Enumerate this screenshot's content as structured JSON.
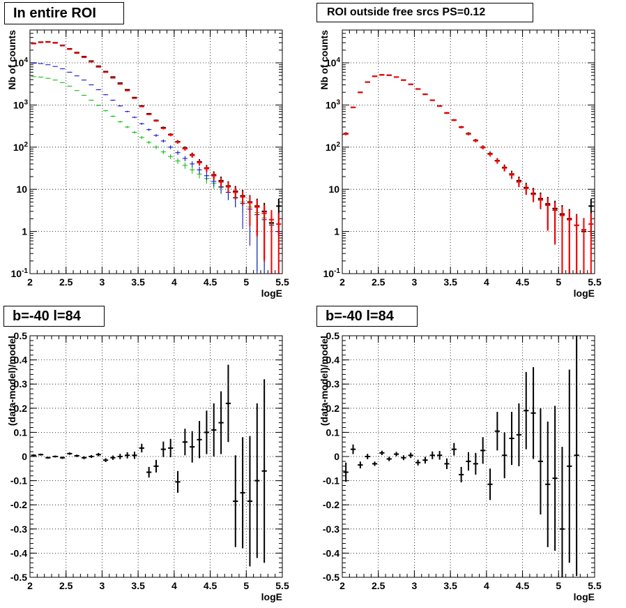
{
  "chart_data": [
    {
      "type": "scatter",
      "title": "In entire ROI",
      "xlabel": "logE",
      "ylabel": "Nb of counts",
      "xlim": [
        2,
        5.5
      ],
      "ylim": [
        0.1,
        60000
      ],
      "yscale": "log",
      "grid": true,
      "x_ticks": [
        "2",
        "2.5",
        "3",
        "3.5",
        "4",
        "4.5",
        "5",
        "5.5"
      ],
      "y_ticks": [
        "10^-1",
        "1",
        "10",
        "10^2",
        "10^3",
        "10^4"
      ],
      "x": [
        2.05,
        2.15,
        2.25,
        2.35,
        2.45,
        2.55,
        2.65,
        2.75,
        2.85,
        2.95,
        3.05,
        3.15,
        3.25,
        3.35,
        3.45,
        3.55,
        3.65,
        3.75,
        3.85,
        3.95,
        4.05,
        4.15,
        4.25,
        4.35,
        4.45,
        4.55,
        4.65,
        4.75,
        4.85,
        4.95,
        5.05,
        5.15,
        5.25,
        5.35,
        5.45
      ],
      "series": [
        {
          "color": "#000000",
          "values": [
            29000,
            31000,
            31500,
            30000,
            26000,
            21500,
            17500,
            14000,
            11000,
            8300,
            6200,
            4600,
            3300,
            2300,
            1500,
            950,
            620,
            430,
            290,
            200,
            135,
            95,
            66,
            45,
            32,
            22,
            16,
            12,
            9,
            7,
            5,
            4,
            3,
            1.6,
            4
          ],
          "err_frac": [
            0.005,
            0.005,
            0.005,
            0.005,
            0.005,
            0.006,
            0.008,
            0.008,
            0.01,
            0.011,
            0.013,
            0.015,
            0.017,
            0.02,
            0.026,
            0.032,
            0.04,
            0.048,
            0.06,
            0.07,
            0.086,
            0.1,
            0.12,
            0.15,
            0.18,
            0.21,
            0.25,
            0.29,
            0.33,
            0.38,
            0.45,
            0.5,
            0.58,
            0.9,
            0.5
          ]
        },
        {
          "color": "#ff0000",
          "values": [
            28500,
            30500,
            31000,
            29500,
            25500,
            21000,
            17000,
            13500,
            10600,
            8000,
            6000,
            4400,
            3150,
            2200,
            1450,
            920,
            600,
            420,
            280,
            195,
            132,
            92,
            64,
            43,
            31,
            21,
            15,
            11.5,
            8.5,
            6.6,
            4.8,
            3.8,
            2.7,
            1.9,
            1.5
          ],
          "err_frac": [
            0.005,
            0.005,
            0.005,
            0.005,
            0.005,
            0.006,
            0.008,
            0.008,
            0.01,
            0.011,
            0.013,
            0.015,
            0.017,
            0.02,
            0.026,
            0.032,
            0.04,
            0.048,
            0.06,
            0.07,
            0.086,
            0.1,
            0.12,
            0.15,
            0.18,
            0.21,
            0.25,
            0.29,
            0.33,
            0.38,
            0.45,
            0.5,
            0.58,
            0.7,
            0.8
          ]
        },
        {
          "color": "#0000cc",
          "values": [
            9800,
            9600,
            9000,
            8200,
            7200,
            6000,
            4900,
            3900,
            3000,
            2300,
            1750,
            1300,
            950,
            700,
            510,
            360,
            260,
            190,
            140,
            100,
            74,
            54,
            40,
            29,
            21,
            15.5,
            11.5,
            8.5,
            6.2,
            4.6,
            3.4,
            2.5,
            1.9,
            1.4,
            1.0
          ],
          "err_frac": [
            0.01,
            0.01,
            0.01,
            0.011,
            0.012,
            0.013,
            0.014,
            0.016,
            0.018,
            0.021,
            0.024,
            0.028,
            0.032,
            0.038,
            0.044,
            0.053,
            0.062,
            0.073,
            0.085,
            0.1,
            0.12,
            0.14,
            0.16,
            0.19,
            0.22,
            0.26,
            0.3,
            0.34,
            0.4,
            0.47,
            0.54,
            0.63,
            0.72,
            0.84,
            1
          ]
        },
        {
          "color": "#00bb00",
          "values": [
            4700,
            4600,
            4300,
            3900,
            3400,
            2800,
            2200,
            1700,
            1300,
            980,
            730,
            540,
            400,
            300,
            225,
            170,
            130,
            100,
            77,
            60,
            47,
            37,
            29,
            23,
            18,
            14,
            11,
            8.5,
            6.5,
            5,
            3.8,
            2.8,
            2.1,
            1.5,
            1.0
          ],
          "err_frac": [
            0.015,
            0.015,
            0.015,
            0.016,
            0.017,
            0.019,
            0.021,
            0.024,
            0.028,
            0.032,
            0.037,
            0.043,
            0.05,
            0.058,
            0.067,
            0.077,
            0.088,
            0.1,
            0.115,
            0.13,
            0.15,
            0.17,
            0.19,
            0.21,
            0.24,
            0.27,
            0.3,
            0.35,
            0.4,
            0.45,
            0.52,
            0.6,
            0.7,
            0.82,
            1
          ]
        }
      ]
    },
    {
      "type": "scatter",
      "title": "ROI outside free srcs PS=0.12",
      "xlabel": "logE",
      "ylabel": "Nb of counts",
      "xlim": [
        2,
        5.5
      ],
      "ylim": [
        0.1,
        60000
      ],
      "yscale": "log",
      "grid": true,
      "x_ticks": [
        "2",
        "2.5",
        "3",
        "3.5",
        "4",
        "4.5",
        "5",
        "5.5"
      ],
      "y_ticks": [
        "10^-1",
        "1",
        "10",
        "10^2",
        "10^3",
        "10^4"
      ],
      "x": [
        2.05,
        2.15,
        2.25,
        2.35,
        2.45,
        2.55,
        2.65,
        2.75,
        2.85,
        2.95,
        3.05,
        3.15,
        3.25,
        3.35,
        3.45,
        3.55,
        3.65,
        3.75,
        3.85,
        3.95,
        4.05,
        4.15,
        4.25,
        4.35,
        4.45,
        4.55,
        4.65,
        4.75,
        4.85,
        4.95,
        5.05,
        5.15,
        5.25,
        5.35,
        5.45
      ],
      "series": [
        {
          "color": "#000000",
          "values": [
            210,
            880,
            2000,
            3500,
            4800,
            5200,
            5100,
            4600,
            3900,
            3100,
            2400,
            1800,
            1300,
            950,
            650,
            440,
            300,
            210,
            145,
            100,
            70,
            48,
            33,
            23,
            16,
            11,
            8,
            6,
            4.5,
            3.5,
            2.6,
            2,
            1.4,
            1,
            4
          ],
          "err_frac": [
            0.07,
            0.034,
            0.022,
            0.017,
            0.014,
            0.014,
            0.014,
            0.015,
            0.016,
            0.018,
            0.02,
            0.024,
            0.028,
            0.032,
            0.04,
            0.048,
            0.058,
            0.07,
            0.083,
            0.1,
            0.12,
            0.14,
            0.17,
            0.2,
            0.25,
            0.3,
            0.35,
            0.4,
            0.47,
            0.53,
            0.62,
            0.7,
            0.85,
            1,
            0.5
          ]
        },
        {
          "color": "#ff0000",
          "values": [
            205,
            870,
            1980,
            3480,
            4780,
            5150,
            5050,
            4580,
            3880,
            3080,
            2380,
            1780,
            1290,
            940,
            640,
            435,
            295,
            205,
            142,
            98,
            68,
            47,
            32,
            22,
            15,
            10.5,
            7.6,
            5.6,
            4.2,
            3.2,
            2.4,
            1.9,
            1.4,
            1.1,
            1.5
          ],
          "err_frac": [
            0.07,
            0.034,
            0.022,
            0.017,
            0.014,
            0.014,
            0.014,
            0.015,
            0.016,
            0.018,
            0.02,
            0.024,
            0.028,
            0.032,
            0.04,
            0.048,
            0.058,
            0.07,
            0.083,
            0.1,
            0.12,
            0.14,
            0.17,
            0.2,
            0.25,
            0.3,
            0.35,
            0.4,
            0.47,
            0.53,
            0.62,
            0.7,
            0.8,
            0.9,
            0.8
          ]
        }
      ]
    },
    {
      "type": "scatter",
      "title": "b=-40 l=84",
      "xlabel": "logE",
      "ylabel": "(data-model)/model",
      "xlim": [
        2,
        5.5
      ],
      "ylim": [
        -0.5,
        0.5
      ],
      "grid": true,
      "x_ticks": [
        "2",
        "2.5",
        "3",
        "3.5",
        "4",
        "4.5",
        "5",
        "5.5"
      ],
      "y_ticks": [
        "-0.5",
        "-0.4",
        "-0.3",
        "-0.2",
        "-0.1",
        "0",
        "0.1",
        "0.2",
        "0.3",
        "0.4",
        "0.5"
      ],
      "x": [
        2.05,
        2.15,
        2.25,
        2.35,
        2.45,
        2.55,
        2.65,
        2.75,
        2.85,
        2.95,
        3.05,
        3.15,
        3.25,
        3.35,
        3.45,
        3.55,
        3.65,
        3.75,
        3.85,
        3.95,
        4.05,
        4.15,
        4.25,
        4.35,
        4.45,
        4.55,
        4.65,
        4.75,
        4.85,
        4.95,
        5.05,
        5.15,
        5.25
      ],
      "series": [
        {
          "color": "#000000",
          "values": [
            0.005,
            0.008,
            -0.005,
            0.0,
            -0.005,
            0.012,
            0.003,
            -0.005,
            0.0,
            0.008,
            -0.015,
            -0.005,
            0.0,
            0.005,
            0.005,
            0.035,
            -0.065,
            -0.04,
            0.03,
            0.035,
            -0.105,
            0.06,
            0.04,
            0.07,
            0.1,
            0.11,
            0.14,
            0.22,
            -0.185,
            -0.15,
            -0.185,
            -0.1,
            -0.06
          ],
          "err": [
            0.004,
            0.004,
            0.004,
            0.004,
            0.005,
            0.005,
            0.005,
            0.006,
            0.006,
            0.007,
            0.008,
            0.009,
            0.011,
            0.013,
            0.015,
            0.018,
            0.022,
            0.026,
            0.032,
            0.038,
            0.045,
            0.055,
            0.065,
            0.077,
            0.09,
            0.11,
            0.13,
            0.16,
            0.19,
            0.23,
            0.27,
            0.32,
            0.38
          ]
        }
      ]
    },
    {
      "type": "scatter",
      "title": "b=-40 l=84",
      "xlabel": "logE",
      "ylabel": "(data-model)/model",
      "xlim": [
        2,
        5.5
      ],
      "ylim": [
        -0.5,
        0.5
      ],
      "grid": true,
      "x_ticks": [
        "2",
        "2.5",
        "3",
        "3.5",
        "4",
        "4.5",
        "5",
        "5.5"
      ],
      "y_ticks": [
        "-0.5",
        "-0.4",
        "-0.3",
        "-0.2",
        "-0.1",
        "0",
        "0.1",
        "0.2",
        "0.3",
        "0.4",
        "0.5"
      ],
      "x": [
        2.05,
        2.15,
        2.25,
        2.35,
        2.45,
        2.55,
        2.65,
        2.75,
        2.85,
        2.95,
        3.05,
        3.15,
        3.25,
        3.35,
        3.45,
        3.55,
        3.65,
        3.75,
        3.85,
        3.95,
        4.05,
        4.15,
        4.25,
        4.35,
        4.45,
        4.55,
        4.65,
        4.75,
        4.85,
        4.95,
        5.05,
        5.15,
        5.25
      ],
      "series": [
        {
          "color": "#000000",
          "values": [
            -0.065,
            0.03,
            -0.035,
            0.0,
            -0.03,
            0.015,
            -0.01,
            0.01,
            -0.005,
            0.005,
            -0.025,
            -0.015,
            0.005,
            0.005,
            -0.03,
            0.03,
            -0.075,
            -0.02,
            -0.03,
            0.025,
            -0.115,
            0.105,
            0.005,
            0.075,
            0.09,
            0.19,
            0.18,
            -0.02,
            -0.115,
            -0.09,
            -0.3,
            -0.04,
            0.005
          ],
          "err": [
            0.04,
            0.02,
            0.014,
            0.011,
            0.009,
            0.009,
            0.009,
            0.009,
            0.01,
            0.011,
            0.012,
            0.014,
            0.016,
            0.018,
            0.022,
            0.026,
            0.032,
            0.038,
            0.045,
            0.055,
            0.065,
            0.08,
            0.095,
            0.11,
            0.13,
            0.16,
            0.19,
            0.22,
            0.26,
            0.3,
            0.34,
            0.4,
            0.5
          ]
        }
      ]
    }
  ]
}
